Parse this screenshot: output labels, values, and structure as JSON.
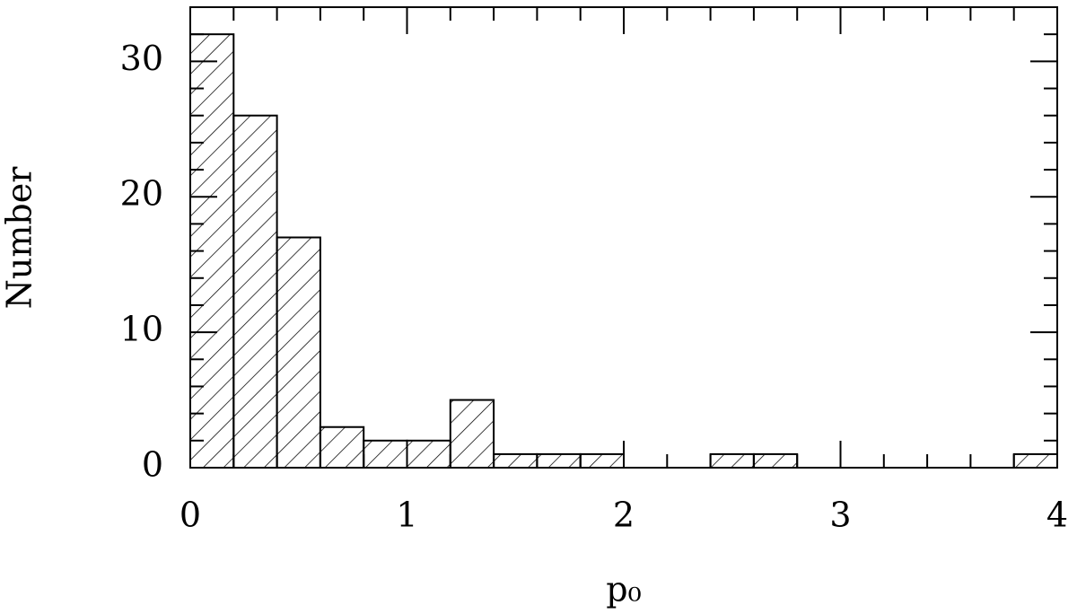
{
  "chart_data": {
    "type": "histogram",
    "xlabel": "p₀",
    "ylabel": "Number",
    "bins": [
      0,
      0.2,
      0.4,
      0.6,
      0.8,
      1.0,
      1.2,
      1.4,
      1.6,
      1.8,
      2.0,
      2.2,
      2.4,
      2.6,
      2.8,
      3.0,
      3.2,
      3.4,
      3.6,
      3.8,
      4.0
    ],
    "values": [
      32,
      26,
      17,
      3,
      2,
      2,
      5,
      1,
      1,
      1,
      0,
      0,
      1,
      1,
      0,
      0,
      0,
      0,
      0,
      1
    ],
    "xlim": [
      0,
      4
    ],
    "xticks": [
      0,
      1,
      2,
      3,
      4
    ],
    "ylim": [
      0,
      34
    ],
    "yticks": [
      0,
      10,
      20,
      30
    ],
    "yminorticks": [
      2,
      4,
      6,
      8,
      12,
      14,
      16,
      18,
      22,
      24,
      26,
      28,
      32
    ],
    "color": "#000000"
  }
}
